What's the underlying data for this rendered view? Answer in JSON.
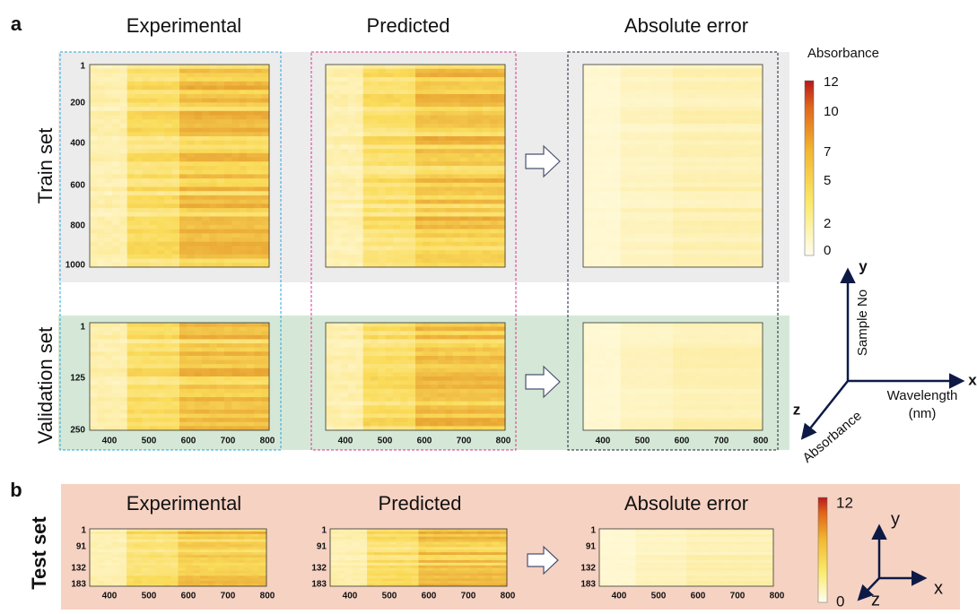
{
  "panel_a": {
    "label": "a",
    "columns": [
      "Experimental",
      "Predicted",
      "Absolute error"
    ],
    "rows": [
      "Train set",
      "Validation set"
    ],
    "train_yticks": [
      "1",
      "200",
      "400",
      "600",
      "800",
      "1000"
    ],
    "validation_yticks": [
      "1",
      "125",
      "250"
    ],
    "xticks": [
      "400",
      "500",
      "600",
      "700",
      "800"
    ],
    "colorbar": {
      "title": "Absorbance",
      "ticks": [
        "12",
        "10",
        "7",
        "5",
        "2",
        "0"
      ]
    },
    "axes": {
      "y": "y",
      "y_label": "Sample No",
      "x": "x",
      "x_label": [
        "Wavelength",
        "(nm)"
      ],
      "z": "z",
      "z_label": "Absorbance"
    }
  },
  "panel_b": {
    "label": "b",
    "columns": [
      "Experimental",
      "Predicted",
      "Absolute error"
    ],
    "row": "Test set",
    "yticks": [
      "1",
      "91",
      "132",
      "183"
    ],
    "xticks": [
      "400",
      "500",
      "600",
      "700",
      "800"
    ],
    "colorbar": {
      "ticks": [
        "12",
        "0"
      ]
    },
    "axes": {
      "y": "y",
      "x": "x",
      "z": "z"
    }
  }
}
